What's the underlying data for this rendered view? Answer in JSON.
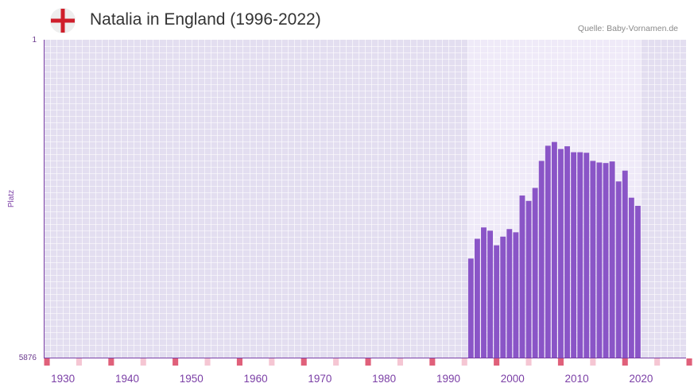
{
  "header": {
    "title": "Natalia in England (1996-2022)",
    "source": "Quelle: Baby-Vornamen.de",
    "flag_icon": "england-flag-icon"
  },
  "colors": {
    "bar": "#8a55c7",
    "plot_bg": "#e3def0",
    "plot_bg_highlight": "#efeaf8",
    "grid": "#ffffff",
    "axis": "#7b3fa6",
    "decade_marker": "#e0607a",
    "year5_marker": "#f5c6d3"
  },
  "chart_data": {
    "type": "bar",
    "title": "Natalia in England (1996-2022)",
    "ylabel": "Platz",
    "xlabel": "",
    "y_reversed": true,
    "ylim": [
      1,
      5876
    ],
    "y_tick_labels": [
      "1",
      "5876"
    ],
    "xlim": [
      1928,
      2028
    ],
    "x_tick_labels": [
      "1930",
      "1940",
      "1950",
      "1960",
      "1970",
      "1980",
      "1990",
      "2000",
      "2010",
      "2020"
    ],
    "highlight_range": [
      1994,
      2021
    ],
    "x": [
      1994,
      1995,
      1996,
      1997,
      1998,
      1999,
      2000,
      2001,
      2002,
      2003,
      2004,
      2005,
      2006,
      2007,
      2008,
      2009,
      2010,
      2011,
      2012,
      2013,
      2014,
      2015,
      2016,
      2017,
      2018,
      2019,
      2020
    ],
    "values": [
      4045,
      3680,
      3470,
      3530,
      3800,
      3640,
      3500,
      3560,
      2880,
      2980,
      2740,
      2240,
      1960,
      1890,
      2020,
      1970,
      2080,
      2080,
      2090,
      2240,
      2270,
      2280,
      2250,
      2620,
      2420,
      2920,
      3070
    ]
  }
}
